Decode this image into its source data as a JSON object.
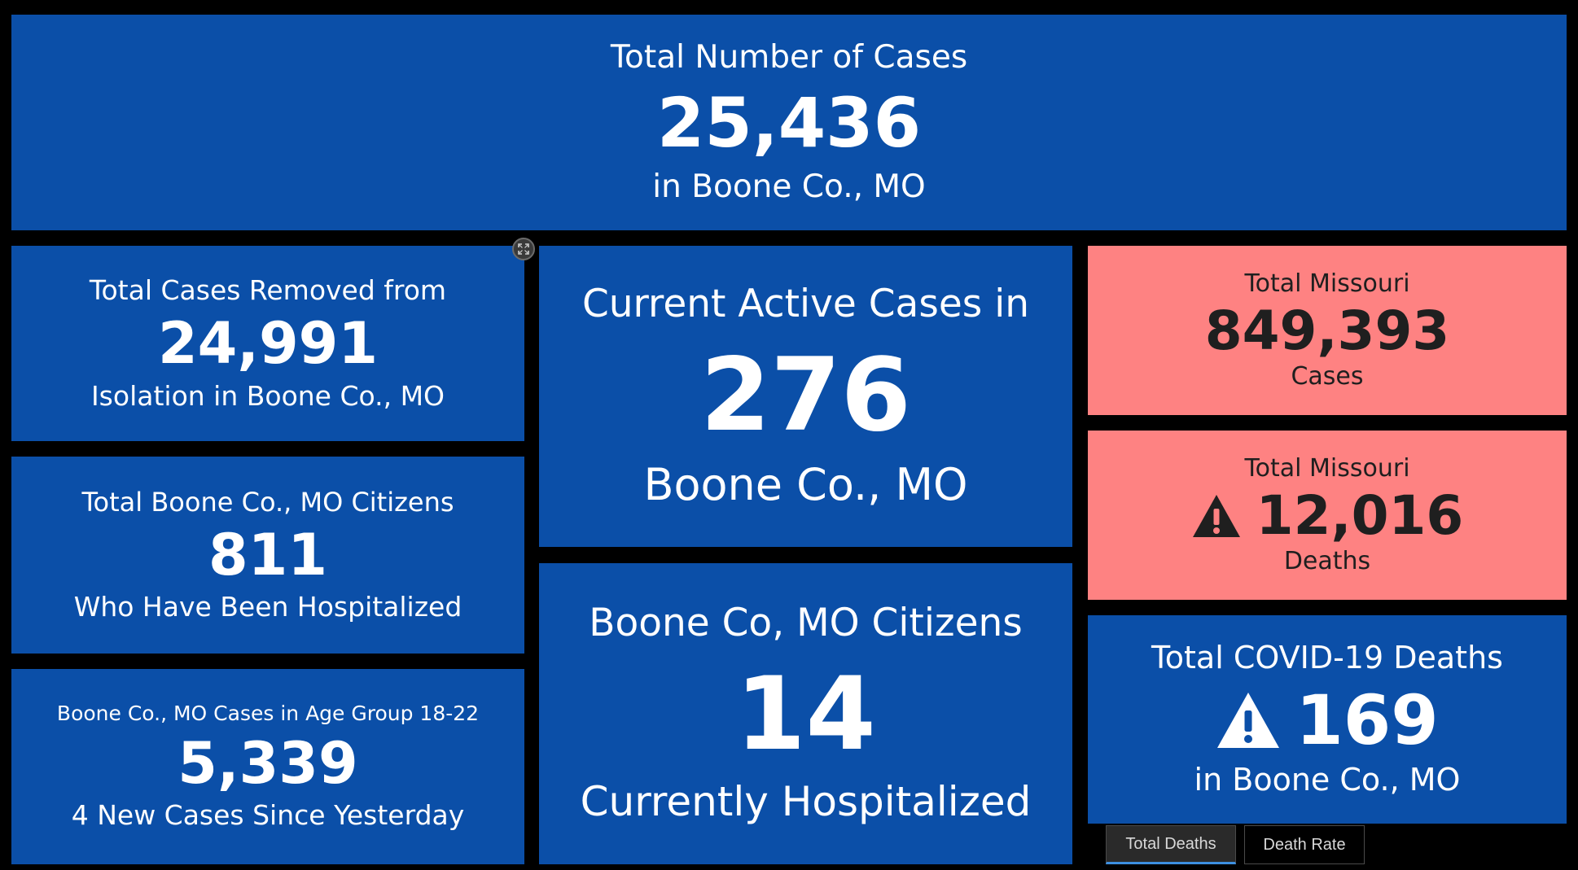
{
  "colors": {
    "background": "#000000",
    "blue_card": "#0b4fa8",
    "red_card": "#fe8282",
    "active_tab_underline": "#3d8fe0"
  },
  "total_cases": {
    "title": "Total Number of Cases",
    "value": "25,436",
    "subtitle": "in Boone Co., MO"
  },
  "removed_isolation": {
    "title": "Total Cases Removed from",
    "value": "24,991",
    "subtitle": "Isolation in Boone Co., MO"
  },
  "hospitalized_total": {
    "title": "Total Boone Co., MO Citizens",
    "value": "811",
    "subtitle": "Who Have Been Hospitalized"
  },
  "age_group": {
    "title": "Boone Co., MO Cases in Age Group 18-22",
    "value": "5,339",
    "subtitle": "4 New Cases Since Yesterday"
  },
  "active_cases": {
    "title": "Current Active Cases in",
    "value": "276",
    "subtitle": "Boone Co., MO"
  },
  "current_hospitalized": {
    "title": "Boone Co, MO Citizens",
    "value": "14",
    "subtitle": "Currently Hospitalized"
  },
  "missouri_cases": {
    "title": "Total Missouri",
    "value": "849,393",
    "subtitle": "Cases"
  },
  "missouri_deaths": {
    "title": "Total Missouri",
    "value": "12,016",
    "subtitle": "Deaths",
    "icon": "warning-icon"
  },
  "boone_deaths": {
    "title": "Total COVID-19 Deaths",
    "value": "169",
    "subtitle": "in Boone Co., MO",
    "icon": "warning-icon"
  },
  "tabs": [
    {
      "label": "Total Deaths",
      "active": true
    },
    {
      "label": "Death Rate",
      "active": false
    }
  ],
  "expand_control": {
    "icon": "expand-icon"
  }
}
